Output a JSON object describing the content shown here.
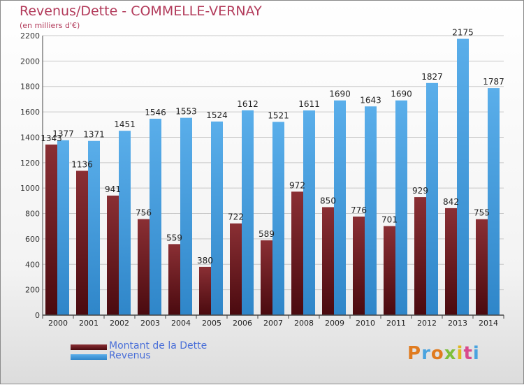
{
  "header": {
    "title": "Revenus/Dette - COMMELLE-VERNAY",
    "subtitle": "(en milliers d'€)"
  },
  "logo": {
    "text": "Proxiti"
  },
  "colors": {
    "dette_top": "#8a2f34",
    "dette_bottom": "#4a0a0f",
    "revenus_top": "#5aaeea",
    "revenus_bottom": "#2f86c9",
    "title": "#b23a5a",
    "legend_text": "#4a6fd8"
  },
  "chart_data": {
    "type": "bar",
    "title": "Revenus/Dette - COMMELLE-VERNAY",
    "subtitle": "(en milliers d'€)",
    "categories": [
      "2000",
      "2001",
      "2002",
      "2003",
      "2004",
      "2005",
      "2006",
      "2007",
      "2008",
      "2009",
      "2010",
      "2011",
      "2012",
      "2013",
      "2014"
    ],
    "series": [
      {
        "name": "Montant de la Dette",
        "values": [
          1343,
          1136,
          941,
          756,
          559,
          380,
          722,
          589,
          972,
          850,
          776,
          701,
          929,
          842,
          755
        ]
      },
      {
        "name": "Revenus",
        "values": [
          1377,
          1371,
          1451,
          1546,
          1553,
          1524,
          1612,
          1521,
          1611,
          1690,
          1643,
          1690,
          1827,
          2175,
          1787
        ]
      }
    ],
    "yticks": [
      0,
      200,
      400,
      600,
      800,
      1000,
      1200,
      1400,
      1600,
      1800,
      2000,
      2200
    ],
    "ylim": [
      0,
      2200
    ],
    "grid": true,
    "legend": "bottom-left"
  }
}
